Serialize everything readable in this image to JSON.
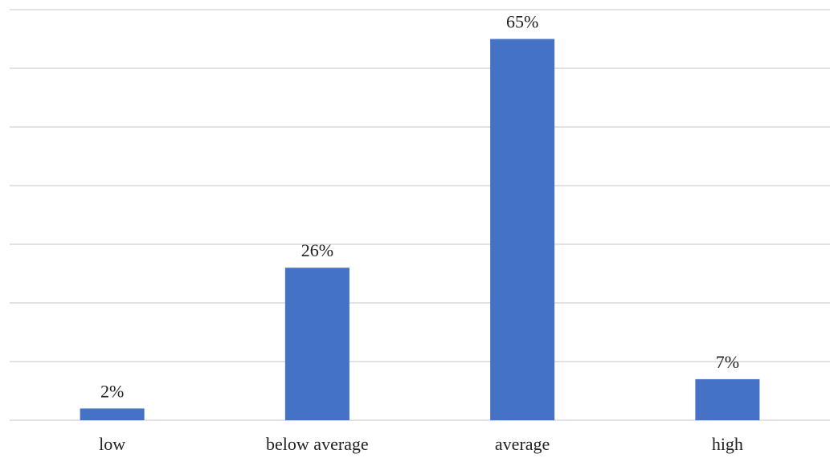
{
  "chart_data": {
    "type": "bar",
    "categories": [
      "low",
      "below average",
      "average",
      "high"
    ],
    "values": [
      2,
      26,
      65,
      7
    ],
    "data_labels": [
      "2%",
      "26%",
      "65%",
      "7%"
    ],
    "title": "",
    "xlabel": "",
    "ylabel": "",
    "ylim": [
      0,
      70
    ],
    "y_gridline_step": 10,
    "grid": true,
    "legend": "none",
    "bar_color": "#4472C4"
  }
}
